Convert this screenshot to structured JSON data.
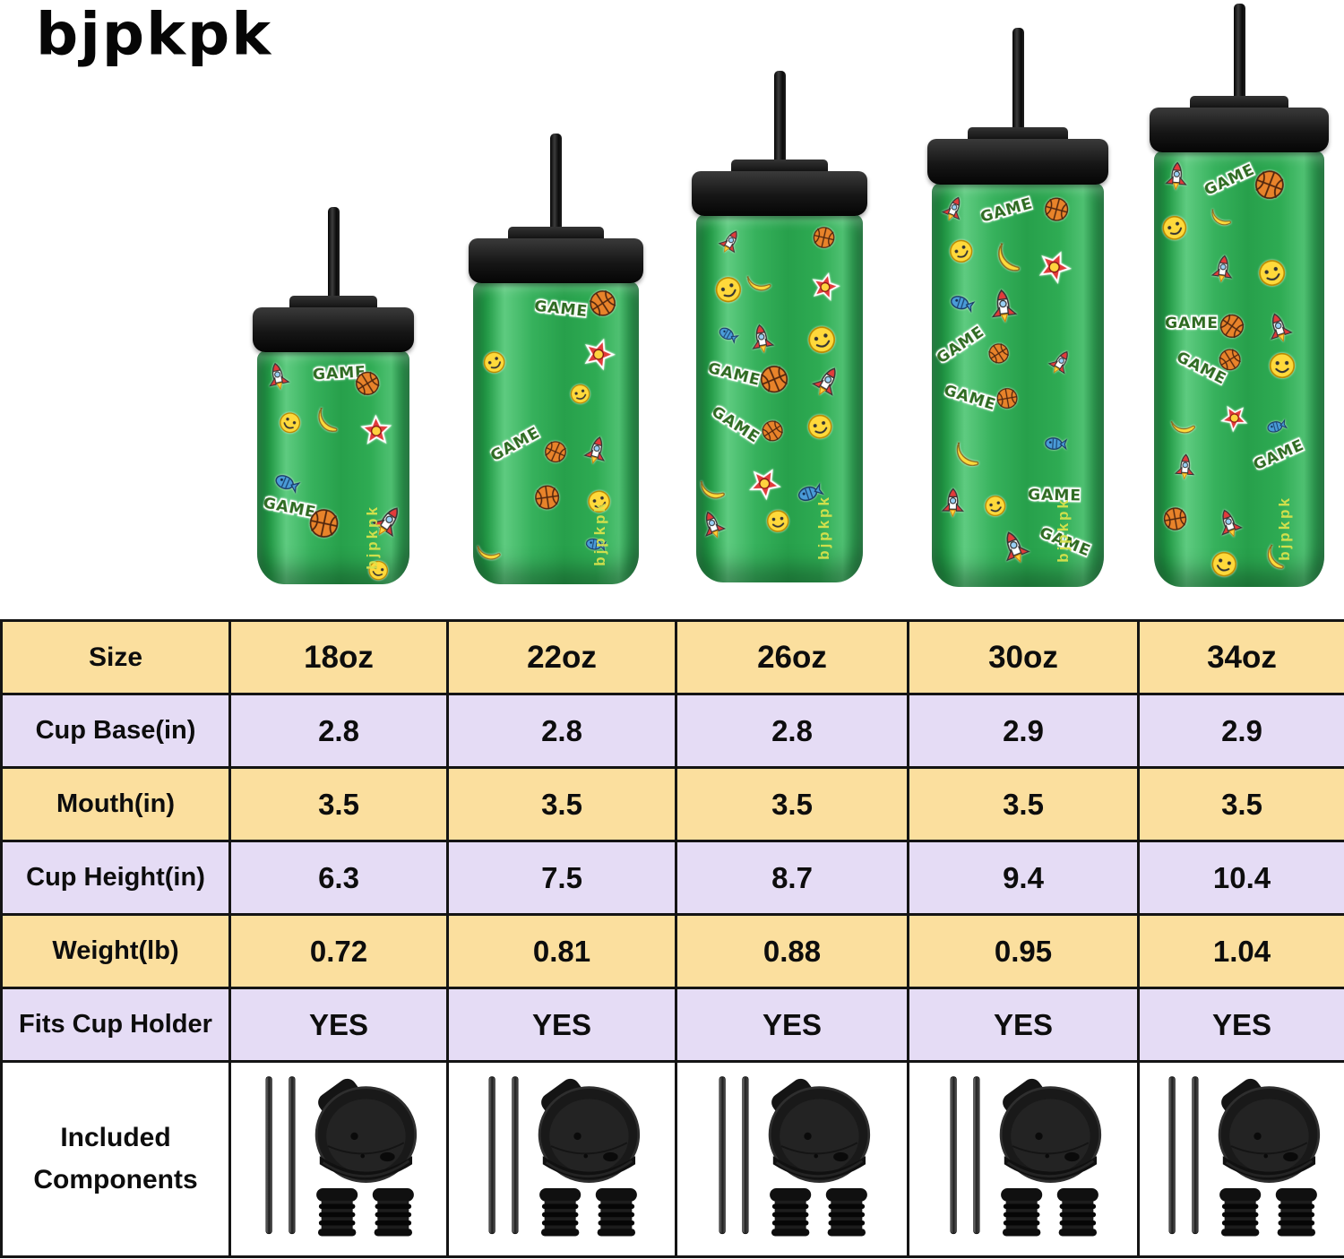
{
  "brand": {
    "logo_text": "bjpkpk",
    "cup_logo_text": "bjpkpk"
  },
  "lineup": {
    "sizes": [
      "18oz",
      "22oz",
      "26oz",
      "30oz",
      "34oz"
    ],
    "pattern_theme": "green game-sticker tumblers with black flip lid and black straw",
    "sticker_names": [
      "rocket",
      "basketball",
      "smiley-face",
      "banana",
      "fish",
      "star-badge",
      "game-word"
    ],
    "game_word": "GAME"
  },
  "table": {
    "header": {
      "label": "Size",
      "sizes": [
        "18oz",
        "22oz",
        "26oz",
        "30oz",
        "34oz"
      ]
    },
    "rows": [
      {
        "label": "Cup Base(in)",
        "values": [
          "2.8",
          "2.8",
          "2.8",
          "2.9",
          "2.9"
        ]
      },
      {
        "label": "Mouth(in)",
        "values": [
          "3.5",
          "3.5",
          "3.5",
          "3.5",
          "3.5"
        ]
      },
      {
        "label": "Cup Height(in)",
        "values": [
          "6.3",
          "7.5",
          "8.7",
          "9.4",
          "10.4"
        ]
      },
      {
        "label": "Weight(lb)",
        "values": [
          "0.72",
          "0.81",
          "0.88",
          "0.95",
          "1.04"
        ]
      },
      {
        "label": "Fits Cup Holder",
        "values": [
          "YES",
          "YES",
          "YES",
          "YES",
          "YES"
        ]
      }
    ],
    "included": {
      "label_lines": [
        "Included",
        "Components"
      ],
      "component_names": [
        "metal-straws",
        "flip-lid",
        "rubber-stoppers"
      ]
    }
  },
  "colors": {
    "row_yellow": "#FBDF9E",
    "row_lavender": "#E5DCF5",
    "cup_green": "#2FA953",
    "lid_black": "#1A1A1A",
    "table_border": "#141414"
  }
}
